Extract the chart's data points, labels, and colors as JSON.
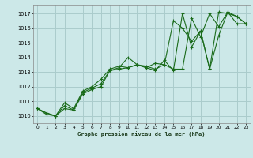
{
  "title": "Graphe pression niveau de la mer (hPa)",
  "bg_color": "#cce8e8",
  "grid_color": "#aacccc",
  "line_color": "#1a6b1a",
  "marker_color": "#1a6b1a",
  "xlim": [
    -0.5,
    23.5
  ],
  "ylim": [
    1009.5,
    1017.6
  ],
  "yticks": [
    1010,
    1011,
    1012,
    1013,
    1014,
    1015,
    1016,
    1017
  ],
  "xticks": [
    0,
    1,
    2,
    3,
    4,
    5,
    6,
    7,
    8,
    9,
    10,
    11,
    12,
    13,
    14,
    15,
    16,
    17,
    18,
    19,
    20,
    21,
    22,
    23
  ],
  "series": [
    [
      1010.5,
      1010.1,
      1010.0,
      1010.5,
      1010.4,
      1011.5,
      1011.8,
      1012.0,
      1013.1,
      1013.2,
      1013.3,
      1013.5,
      1013.3,
      1013.1,
      1013.8,
      1013.1,
      1017.0,
      1014.7,
      1015.8,
      1013.2,
      1017.1,
      1017.0,
      1016.8,
      1016.3
    ],
    [
      1010.5,
      1010.2,
      1010.0,
      1010.7,
      1010.4,
      1011.6,
      1011.9,
      1012.2,
      1013.1,
      1013.3,
      1014.0,
      1013.5,
      1013.3,
      1013.6,
      1013.5,
      1016.5,
      1016.0,
      1015.1,
      1015.8,
      1013.2,
      1015.5,
      1017.1,
      1016.3,
      1016.3
    ],
    [
      1010.5,
      1010.2,
      1010.0,
      1010.9,
      1010.5,
      1011.7,
      1012.0,
      1012.5,
      1013.2,
      1013.4,
      1013.3,
      1013.5,
      1013.4,
      1013.2,
      1013.5,
      1013.2,
      1013.2,
      1016.7,
      1015.4,
      1017.0,
      1016.1,
      1017.1,
      1016.8,
      1016.3
    ]
  ]
}
